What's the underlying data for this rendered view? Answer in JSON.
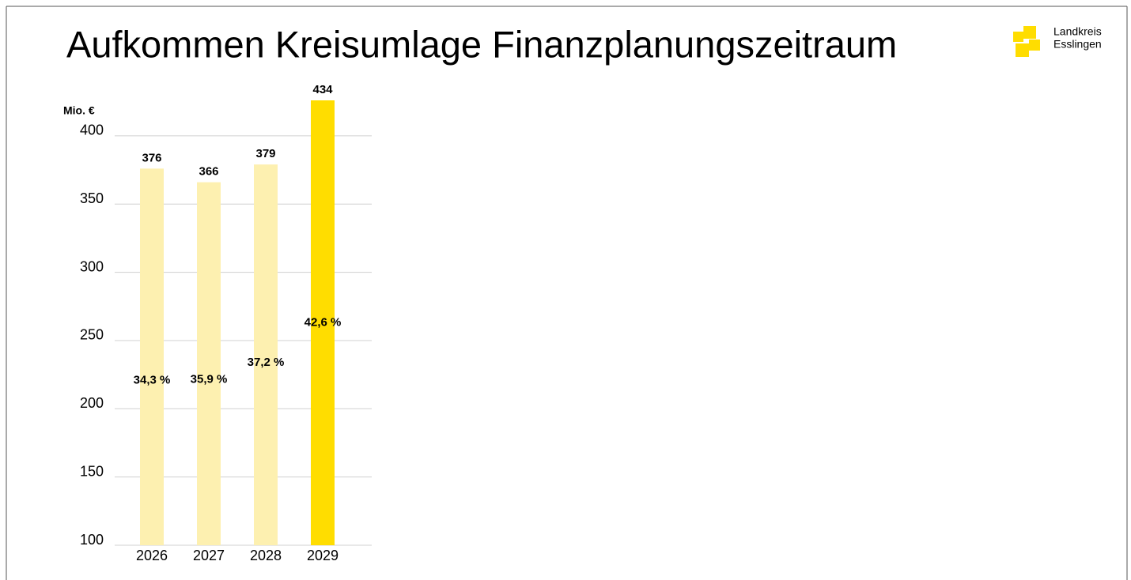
{
  "chart_data": {
    "type": "bar",
    "title": "Aufkommen Kreisumlage Finanzplanungszeitraum",
    "logo": [
      "Landkreis",
      "Esslingen"
    ],
    "y_label": "Mio. €",
    "categories": [
      "2026",
      "2027",
      "2028",
      "2029"
    ],
    "values": [
      376,
      366,
      379,
      434
    ],
    "colors": [
      "#fdf0b0",
      "#fdf0b0",
      "#fdf0b0",
      "#ffdd00"
    ],
    "shares": {
      "values": [
        34.3,
        35.9,
        37.2,
        42.6
      ],
      "value_labels": [
        "34,3 %",
        "35,9 %",
        "37,2 %",
        "42,6 %"
      ]
    },
    "ylim": [
      100,
      426
    ],
    "yticks": [
      100,
      150,
      200,
      250,
      300,
      350,
      400
    ],
    "grid": true
  }
}
